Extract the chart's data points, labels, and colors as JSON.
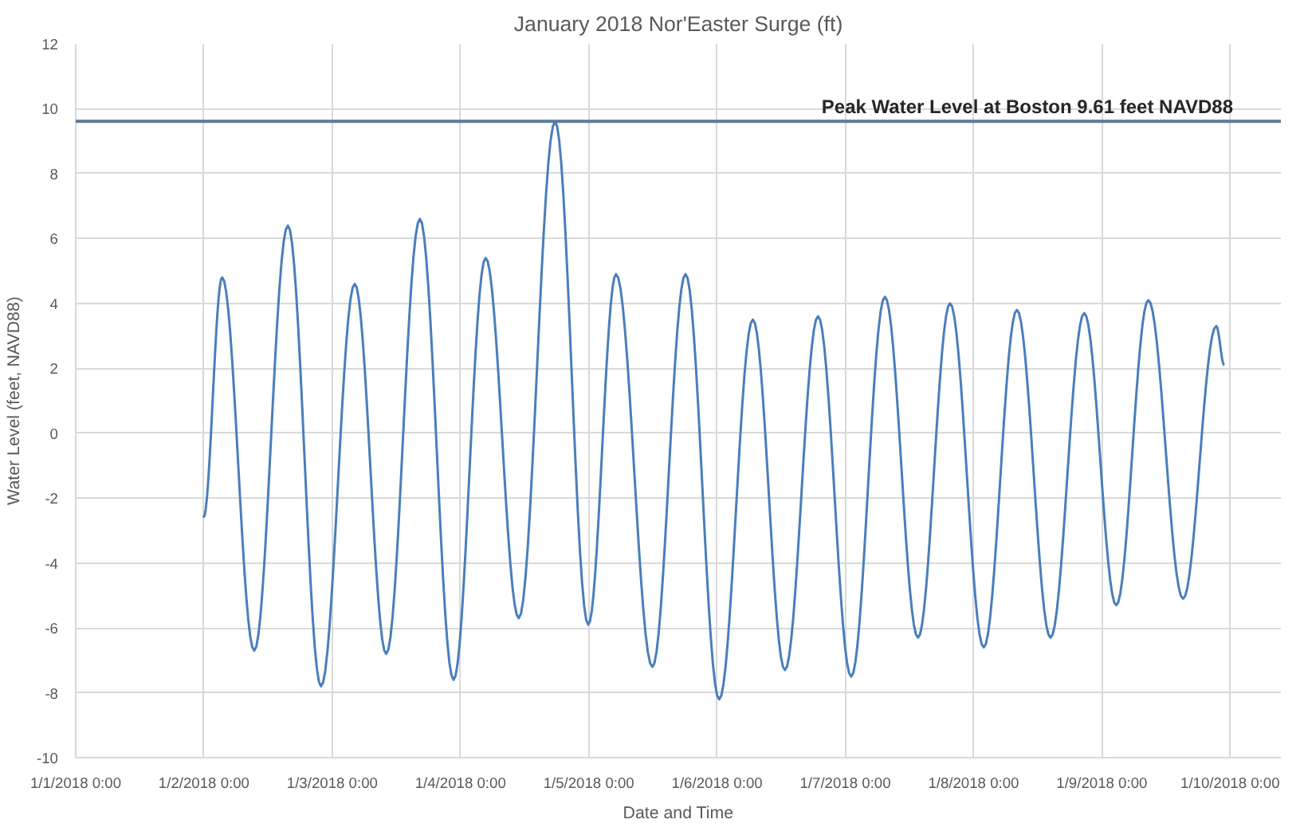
{
  "chart_data": {
    "type": "line",
    "title": "January 2018 Nor'Easter Surge (ft)",
    "xlabel": "Date and Time",
    "ylabel": "Water Level (feet, NAVD88)",
    "x": [
      "2018-01-01T23:54",
      "2018-01-02T03:24",
      "2018-01-02T09:24",
      "2018-01-02T15:42",
      "2018-01-02T21:54",
      "2018-01-03T04:12",
      "2018-01-03T10:06",
      "2018-01-03T16:24",
      "2018-01-03T22:42",
      "2018-01-04T04:42",
      "2018-01-04T10:54",
      "2018-01-04T17:42",
      "2018-01-04T23:54",
      "2018-01-05T05:06",
      "2018-01-05T11:54",
      "2018-01-05T18:06",
      "2018-01-06T00:24",
      "2018-01-06T06:42",
      "2018-01-06T12:42",
      "2018-01-06T18:54",
      "2018-01-07T01:06",
      "2018-01-07T07:24",
      "2018-01-07T13:36",
      "2018-01-07T19:36",
      "2018-01-08T01:54",
      "2018-01-08T08:06",
      "2018-01-08T14:24",
      "2018-01-08T20:42",
      "2018-01-09T02:42",
      "2018-01-09T08:42",
      "2018-01-09T15:12",
      "2018-01-09T21:24",
      "2018-01-09T22:54"
    ],
    "series": [
      {
        "color": "#4a7ebb",
        "values": [
          -2.6,
          4.8,
          -6.7,
          6.4,
          -7.8,
          4.6,
          -6.8,
          6.6,
          -7.6,
          5.4,
          -5.7,
          9.6,
          -5.9,
          4.9,
          -7.2,
          4.9,
          -8.2,
          3.5,
          -7.3,
          3.6,
          -7.5,
          4.2,
          -6.3,
          4.0,
          -6.6,
          3.8,
          -6.3,
          3.7,
          -5.3,
          4.1,
          -5.1,
          3.3,
          2.1
        ]
      }
    ],
    "xlim": [
      "2018-01-01T00:00",
      "2018-01-10T09:30"
    ],
    "xticks": [
      {
        "value": "2018-01-01",
        "label": "1/1/2018 0:00"
      },
      {
        "value": "2018-01-02",
        "label": "1/2/2018 0:00"
      },
      {
        "value": "2018-01-03",
        "label": "1/3/2018 0:00"
      },
      {
        "value": "2018-01-04",
        "label": "1/4/2018 0:00"
      },
      {
        "value": "2018-01-05",
        "label": "1/5/2018 0:00"
      },
      {
        "value": "2018-01-06",
        "label": "1/6/2018 0:00"
      },
      {
        "value": "2018-01-07",
        "label": "1/7/2018 0:00"
      },
      {
        "value": "2018-01-08",
        "label": "1/8/2018 0:00"
      },
      {
        "value": "2018-01-09",
        "label": "1/9/2018 0:00"
      },
      {
        "value": "2018-01-10",
        "label": "1/10/2018 0:00"
      }
    ],
    "ylim": [
      -10,
      12
    ],
    "yticks": [
      -10,
      -8,
      -6,
      -4,
      -2,
      0,
      2,
      4,
      6,
      8,
      10,
      12
    ],
    "ref_lines": [
      {
        "axis": "y",
        "value": 9.61,
        "label": "Peak Water Level at Boston 9.61 feet NAVD88",
        "color": "#5b7a99"
      }
    ],
    "grid": true
  }
}
